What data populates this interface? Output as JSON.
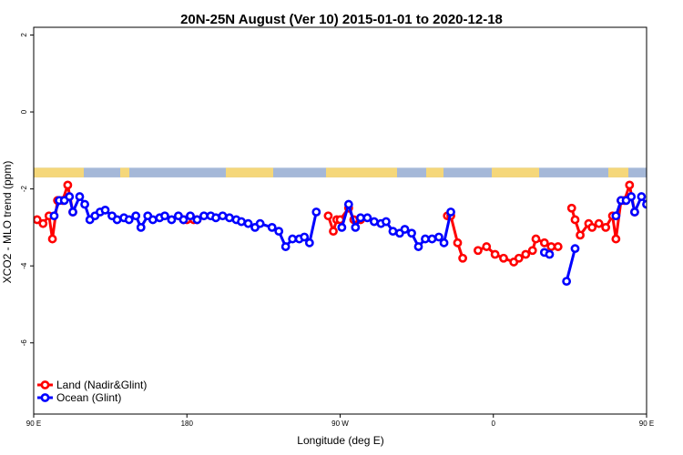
{
  "chart_data": {
    "type": "line",
    "title": "20N-25N August (Ver 10)   2015-01-01 to 2020-12-18",
    "xlabel": "Longitude (deg E)",
    "ylabel": "XCO2 - MLO trend (ppm)",
    "xlim": [
      90,
      450
    ],
    "ylim": [
      -7.85,
      2.2
    ],
    "x_ticks": [
      {
        "value": 90,
        "label": "90 E"
      },
      {
        "value": 180,
        "label": "180"
      },
      {
        "value": 270,
        "label": "90 W"
      },
      {
        "value": 360,
        "label": "0"
      },
      {
        "value": 450,
        "label": "90 E"
      },
      {
        "value": 540,
        "label": "180"
      }
    ],
    "y_ticks": [
      {
        "value": 2,
        "label": "2"
      },
      {
        "value": 0,
        "label": "0"
      },
      {
        "value": -2,
        "label": "-2"
      },
      {
        "value": -4,
        "label": "-4"
      },
      {
        "value": -6,
        "label": "-6"
      }
    ],
    "map_band": {
      "y_top": -1.45,
      "y_bottom": -1.7,
      "ocean_color": "#a5b8d8",
      "land_color": "#f5d77a"
    },
    "legend": {
      "position": "bottom-left"
    },
    "series": [
      {
        "name": "Land (Nadir&Glint)",
        "color": "#ff0000",
        "segments": [
          [
            [
              92,
              -2.8
            ],
            [
              95.5,
              -2.9
            ],
            [
              99,
              -2.7
            ],
            [
              101,
              -3.3
            ],
            [
              104,
              -2.3
            ],
            [
              107,
              -2.3
            ],
            [
              110,
              -1.9
            ],
            [
              113,
              -2.6
            ]
          ],
          [
            [
              178,
              -2.8
            ],
            [
              180,
              -2.8
            ],
            [
              184,
              -2.8
            ],
            [
              186,
              -2.8
            ]
          ],
          [
            [
              263,
              -2.7
            ],
            [
              266,
              -3.1
            ],
            [
              268,
              -2.8
            ],
            [
              270,
              -2.8
            ],
            [
              275,
              -2.5
            ],
            [
              278,
              -2.8
            ],
            [
              282,
              -2.8
            ]
          ],
          [
            [
              333,
              -2.7
            ],
            [
              335,
              -2.7
            ],
            [
              339,
              -3.4
            ],
            [
              342,
              -3.8
            ]
          ],
          [
            [
              351,
              -3.6
            ],
            [
              356,
              -3.5
            ],
            [
              361,
              -3.7
            ],
            [
              366,
              -3.8
            ],
            [
              372,
              -3.9
            ],
            [
              375,
              -3.8
            ],
            [
              379,
              -3.7
            ],
            [
              383,
              -3.6
            ],
            [
              385,
              -3.3
            ],
            [
              390,
              -3.4
            ],
            [
              394,
              -3.5
            ],
            [
              398,
              -3.5
            ]
          ],
          [
            [
              406,
              -2.5
            ],
            [
              408,
              -2.8
            ],
            [
              411,
              -3.2
            ],
            [
              416,
              -2.9
            ],
            [
              418,
              -3.0
            ],
            [
              422,
              -2.9
            ],
            [
              426,
              -3.0
            ],
            [
              430,
              -2.7
            ],
            [
              432,
              -3.3
            ],
            [
              435,
              -2.3
            ],
            [
              437,
              -2.3
            ],
            [
              440,
              -1.9
            ],
            [
              443,
              -2.6
            ]
          ]
        ]
      },
      {
        "name": "Ocean (Glint)",
        "color": "#0000ff",
        "segments": [
          [
            [
              102,
              -2.7
            ],
            [
              105,
              -2.3
            ],
            [
              108,
              -2.3
            ],
            [
              111,
              -2.2
            ],
            [
              113,
              -2.6
            ],
            [
              117,
              -2.2
            ],
            [
              120,
              -2.4
            ],
            [
              123,
              -2.8
            ],
            [
              126,
              -2.7
            ],
            [
              129,
              -2.6
            ],
            [
              132,
              -2.55
            ],
            [
              136,
              -2.7
            ],
            [
              139,
              -2.8
            ],
            [
              143,
              -2.75
            ],
            [
              146,
              -2.8
            ],
            [
              150,
              -2.7
            ],
            [
              153,
              -3.0
            ],
            [
              157,
              -2.7
            ],
            [
              160,
              -2.8
            ],
            [
              164,
              -2.75
            ],
            [
              167,
              -2.7
            ],
            [
              171,
              -2.8
            ],
            [
              175,
              -2.7
            ],
            [
              178,
              -2.8
            ],
            [
              182,
              -2.7
            ],
            [
              186,
              -2.8
            ],
            [
              190,
              -2.7
            ],
            [
              194,
              -2.7
            ],
            [
              197,
              -2.75
            ],
            [
              201,
              -2.7
            ],
            [
              205,
              -2.75
            ],
            [
              209,
              -2.8
            ],
            [
              212,
              -2.85
            ],
            [
              216,
              -2.9
            ],
            [
              220,
              -3.0
            ],
            [
              223,
              -2.9
            ],
            [
              230,
              -3.0
            ],
            [
              234,
              -3.1
            ],
            [
              238,
              -3.5
            ],
            [
              242,
              -3.3
            ],
            [
              246,
              -3.3
            ],
            [
              249,
              -3.25
            ],
            [
              252,
              -3.4
            ],
            [
              256,
              -2.6
            ]
          ],
          [
            [
              271,
              -3.0
            ],
            [
              275,
              -2.4
            ],
            [
              279,
              -3.0
            ],
            [
              282,
              -2.75
            ],
            [
              286,
              -2.75
            ],
            [
              290,
              -2.85
            ],
            [
              294,
              -2.9
            ],
            [
              297,
              -2.85
            ],
            [
              301,
              -3.1
            ],
            [
              305,
              -3.15
            ],
            [
              308,
              -3.05
            ],
            [
              312,
              -3.15
            ],
            [
              316,
              -3.5
            ],
            [
              320,
              -3.3
            ],
            [
              324,
              -3.3
            ],
            [
              328,
              -3.25
            ],
            [
              331,
              -3.4
            ],
            [
              335,
              -2.6
            ]
          ],
          [
            [
              390,
              -3.65
            ],
            [
              393,
              -3.7
            ]
          ],
          [
            [
              403,
              -4.4
            ],
            [
              408,
              -3.55
            ]
          ],
          [
            [
              432,
              -2.7
            ],
            [
              435,
              -2.3
            ],
            [
              438,
              -2.3
            ],
            [
              441,
              -2.2
            ],
            [
              443,
              -2.6
            ],
            [
              447,
              -2.2
            ],
            [
              450,
              -2.4
            ],
            [
              453,
              -2.8
            ],
            [
              456,
              -2.7
            ],
            [
              459,
              -2.6
            ],
            [
              462,
              -2.55
            ],
            [
              466,
              -2.7
            ],
            [
              469,
              -2.8
            ],
            [
              473,
              -2.75
            ],
            [
              476,
              -2.8
            ]
          ]
        ]
      }
    ]
  }
}
